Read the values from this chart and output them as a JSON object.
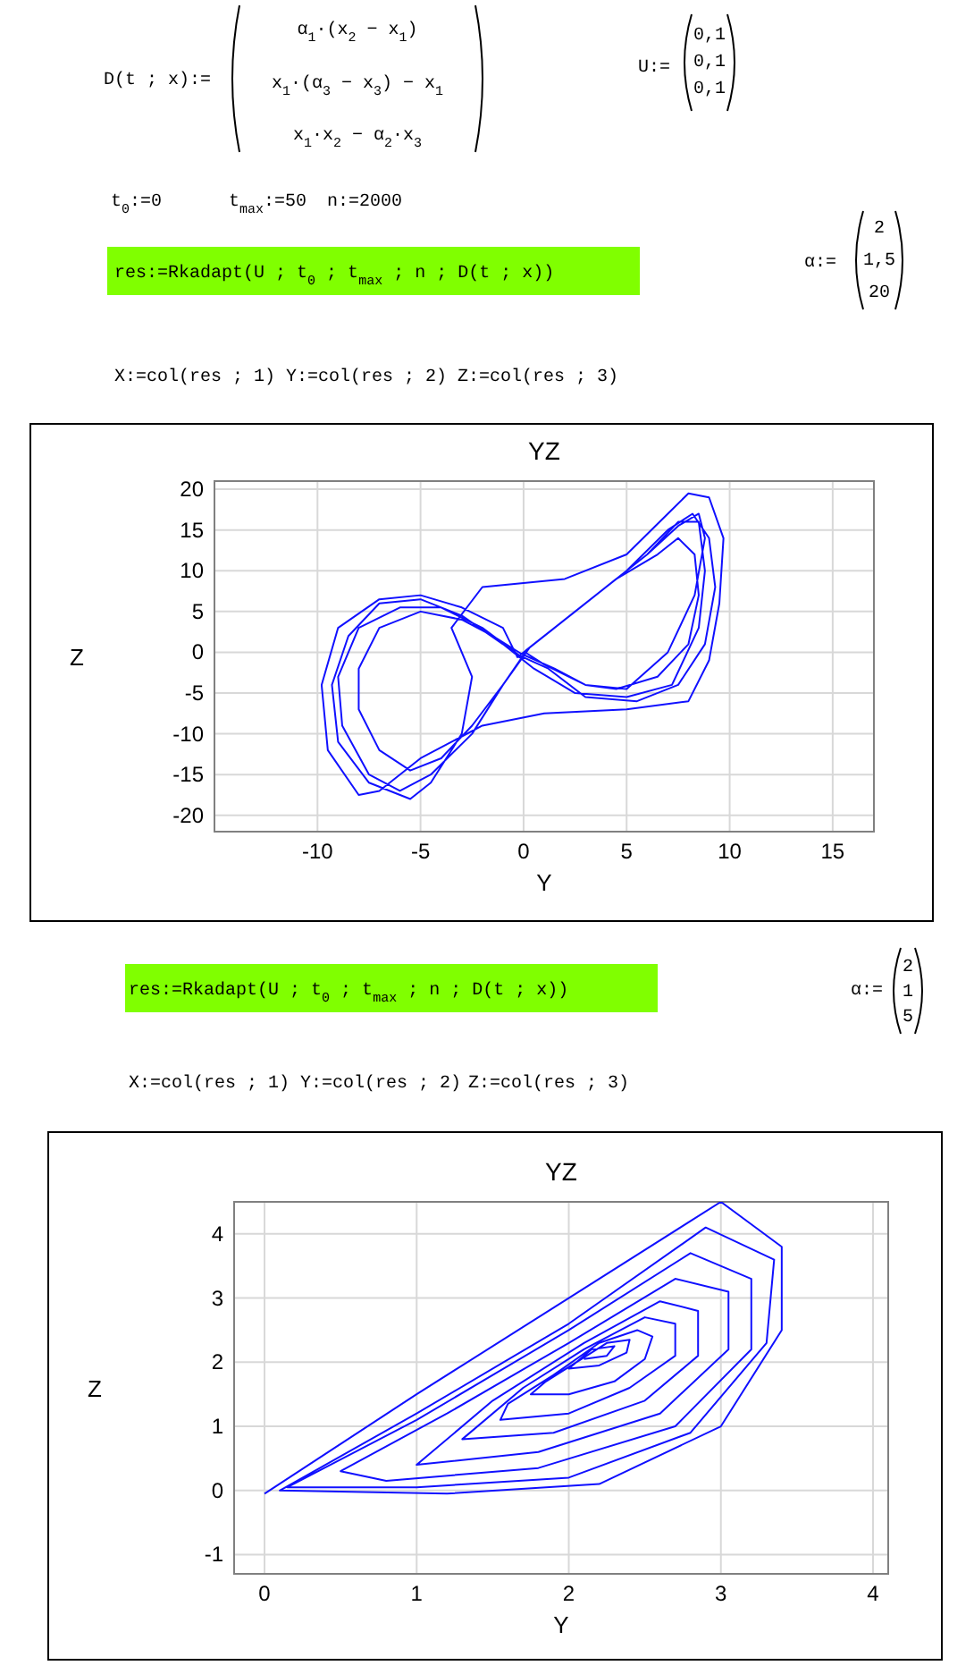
{
  "chart_data": [
    {
      "type": "line",
      "title": "YZ",
      "xlabel": "Y",
      "ylabel": "Z",
      "xlim": [
        -15,
        17
      ],
      "ylim": [
        -22,
        21
      ],
      "xticks": [
        -10,
        -5,
        0,
        5,
        10,
        15
      ],
      "yticks": [
        -20,
        -15,
        -10,
        -5,
        0,
        5,
        10,
        15,
        20
      ],
      "grid": true,
      "series": [
        {
          "color": "#1010ff",
          "x": [
            0.1,
            1.5,
            3,
            4.5,
            6.5,
            7.5,
            8.3,
            8.5,
            8,
            6.5,
            4.5,
            3,
            1.5,
            -0.1,
            -1.5,
            -3,
            -5,
            -7,
            -8,
            -8,
            -7,
            -5.5,
            -4,
            -2.5,
            -1,
            0.2,
            2.5,
            5,
            7,
            8.2,
            9,
            9.3,
            8.8,
            7.5,
            5.5,
            3,
            1.2,
            -0.2,
            -2,
            -4,
            -6,
            -8,
            -9,
            -8.8,
            -7.5,
            -6,
            -4.5,
            -2.5,
            -1,
            0.3,
            2,
            4,
            6,
            7.5,
            8.5,
            8.8,
            8.5,
            7.2,
            5,
            2.5,
            0.5,
            -1,
            -3,
            -5,
            -7,
            -8.5,
            -9.3,
            -9,
            -7.5,
            -5.5,
            -4.5,
            -3,
            -2.5,
            -3.5,
            -2,
            2,
            5,
            7,
            8,
            9,
            9.7,
            9.5,
            9,
            8,
            5,
            1,
            -2,
            -5,
            -7,
            -8,
            -9.5,
            -9.8,
            -9,
            -7,
            -5,
            -3,
            -1,
            -0.3,
            2,
            4,
            6,
            7.5,
            8.5,
            8.8,
            8.3,
            7,
            5,
            3,
            1,
            0.05
          ],
          "values": [
            0.2,
            3,
            6,
            9,
            12,
            14,
            12,
            7,
            1,
            -3,
            -4.5,
            -4,
            -2,
            -0.2,
            2,
            4,
            5,
            3,
            -2,
            -7,
            -12,
            -14.5,
            -13,
            -9,
            -4,
            0.4,
            5,
            10,
            15,
            17,
            14,
            8,
            1,
            -4,
            -6,
            -5.5,
            -2,
            -0.4,
            3,
            5.5,
            5.5,
            3,
            -3,
            -9,
            -15,
            -17,
            -15,
            -10,
            -4,
            0.6,
            4,
            8,
            12,
            16,
            16,
            10,
            3,
            -4,
            -5.5,
            -5,
            -2,
            1,
            4.5,
            6.5,
            6,
            2,
            -4,
            -11,
            -16,
            -18,
            -16,
            -10,
            -3,
            3,
            8,
            9,
            12,
            17,
            19.5,
            19,
            14,
            6,
            -1,
            -6,
            -7,
            -7.5,
            -9,
            -13,
            -17,
            -17.5,
            -12,
            -4,
            3,
            6.5,
            7,
            5.5,
            3,
            -0.6,
            4,
            8,
            12,
            15.5,
            17,
            14,
            7,
            0,
            -4.5,
            -4,
            -1.5,
            0.05
          ]
        }
      ],
      "annotations": [
        "D(t ; x):=",
        "α$_{1}$·(x$_{2}$ − x$_{1}$)",
        "x$_{1}$·(α$_{3}$ − x$_{3}$) − x$_{1}$",
        "x$_{1}$·x$_{2}$ − α$_{2}$·x$_{3}$",
        "U:=",
        "0,1",
        "0,1",
        "0,1",
        "t$_{0}$:=0",
        "t$_{max}$:=50",
        "n:=2000",
        "res:=Rkadapt(U ; t$_{0}$ ; t$_{max}$ ; n ; D(t ; x))",
        "α:=",
        "2",
        "1,5",
        "20",
        "X:=col(res ; 1)",
        "Y:=col(res ; 2)",
        "Z:=col(res ; 3)"
      ]
    },
    {
      "type": "line",
      "title": "YZ",
      "xlabel": "Y",
      "ylabel": "Z",
      "xlim": [
        -0.2,
        4.1
      ],
      "ylim": [
        -1.3,
        4.5
      ],
      "xticks": [
        0,
        1,
        2,
        3,
        4
      ],
      "yticks": [
        -1,
        0,
        1,
        2,
        3,
        4
      ],
      "grid": true,
      "series": [
        {
          "color": "#1010ff",
          "x": [
            0,
            1,
            2,
            3,
            3.4,
            3.4,
            3,
            2.2,
            1.2,
            0.1,
            1,
            2,
            2.9,
            3.35,
            3.3,
            2.8,
            2,
            1,
            0.15,
            1,
            2,
            2.8,
            3.2,
            3.2,
            2.7,
            1.8,
            0.8,
            0.5,
            1.2,
            2,
            2.7,
            3.05,
            3.05,
            2.6,
            1.8,
            1,
            1.5,
            2.1,
            2.6,
            2.85,
            2.85,
            2.5,
            1.9,
            1.3,
            1.7,
            2.1,
            2.5,
            2.7,
            2.7,
            2.4,
            2,
            1.55,
            1.6,
            1.9,
            2.2,
            2.45,
            2.55,
            2.5,
            2.3,
            2,
            1.75,
            1.85,
            2.05,
            2.25,
            2.4,
            2.38,
            2.2,
            2,
            2.15,
            2.3,
            2.25,
            2.1
          ],
          "values": [
            -0.05,
            1.5,
            3,
            4.5,
            3.8,
            2.5,
            1,
            0.1,
            -0.05,
            0,
            1.2,
            2.6,
            4.1,
            3.6,
            2.3,
            0.9,
            0.2,
            0.05,
            0.05,
            1.1,
            2.5,
            3.7,
            3.3,
            2.2,
            1,
            0.35,
            0.15,
            0.3,
            1.2,
            2.3,
            3.3,
            3.1,
            2.2,
            1.2,
            0.6,
            0.4,
            1.4,
            2.3,
            2.95,
            2.8,
            2.1,
            1.4,
            0.9,
            0.8,
            1.6,
            2.2,
            2.7,
            2.6,
            2.1,
            1.6,
            1.2,
            1.1,
            1.35,
            1.8,
            2.3,
            2.5,
            2.4,
            2.05,
            1.7,
            1.5,
            1.5,
            1.7,
            2,
            2.3,
            2.35,
            2.15,
            1.95,
            1.9,
            2.2,
            2.25,
            2.1,
            2.05
          ]
        }
      ],
      "annotations": [
        "res:=Rkadapt(U ; t$_{0}$ ; t$_{max}$ ; n ; D(t ; x))",
        "α:=",
        "2",
        "1",
        "5",
        "X:=col(res ; 1)",
        "Y:=col(res ; 2)",
        "Z:=col(res ; 3)"
      ]
    }
  ]
}
